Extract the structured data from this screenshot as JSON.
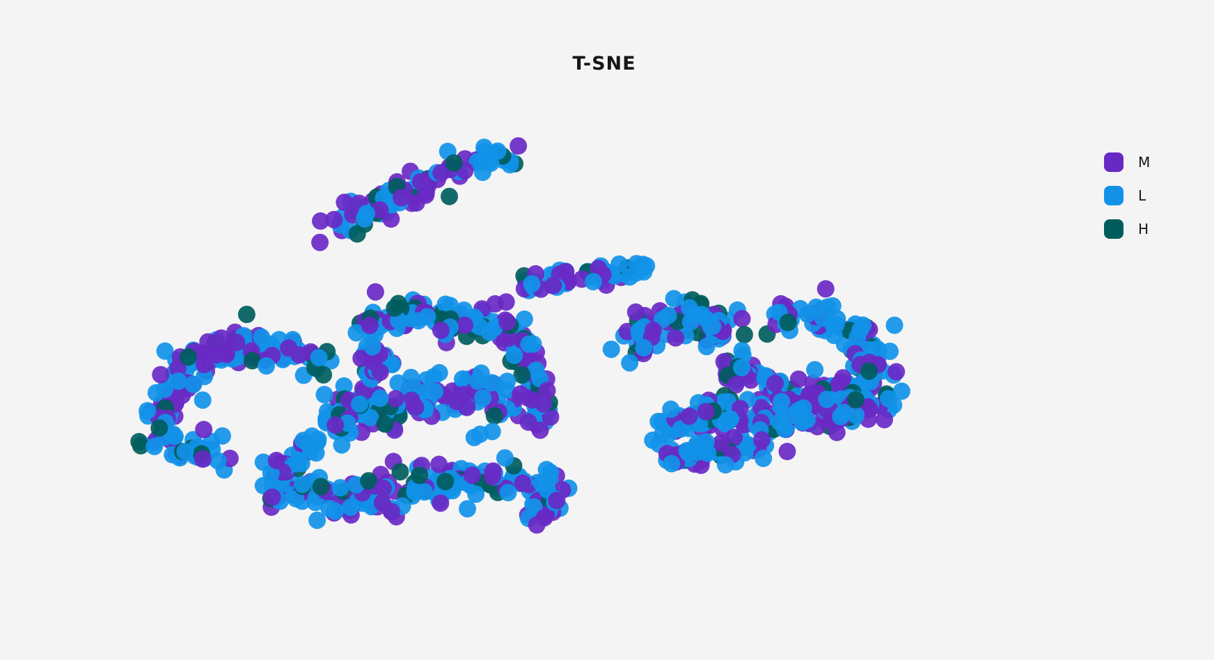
{
  "chart_data": {
    "type": "scatter",
    "title": "T-SNE",
    "xlabel": "",
    "ylabel": "",
    "grid": false,
    "axes_visible": false,
    "legend_position": "top-right",
    "series": [
      {
        "name": "M",
        "color": "#6929c4"
      },
      {
        "name": "L",
        "color": "#1192e8"
      },
      {
        "name": "H",
        "color": "#005d5d"
      }
    ],
    "clusters": [
      {
        "id": "top-band",
        "path": [
          [
            470,
            330
          ],
          [
            530,
            300
          ],
          [
            600,
            265
          ],
          [
            660,
            240
          ],
          [
            740,
            230
          ]
        ],
        "spread": 20,
        "n": 90
      },
      {
        "id": "upper-mid-band",
        "path": [
          [
            745,
            410
          ],
          [
            800,
            400
          ],
          [
            860,
            395
          ],
          [
            920,
            385
          ]
        ],
        "spread": 16,
        "n": 50
      },
      {
        "id": "left-arc",
        "path": [
          [
            460,
            520
          ],
          [
            400,
            500
          ],
          [
            330,
            500
          ],
          [
            270,
            525
          ],
          [
            235,
            575
          ],
          [
            230,
            630
          ],
          [
            270,
            650
          ],
          [
            330,
            655
          ]
        ],
        "spread": 24,
        "n": 170
      },
      {
        "id": "center-loop-top",
        "path": [
          [
            520,
            470
          ],
          [
            580,
            445
          ],
          [
            650,
            460
          ],
          [
            720,
            465
          ],
          [
            750,
            500
          ],
          [
            780,
            560
          ],
          [
            760,
            600
          ]
        ],
        "spread": 24,
        "n": 150
      },
      {
        "id": "center-body",
        "path": [
          [
            470,
            600
          ],
          [
            540,
            590
          ],
          [
            610,
            570
          ],
          [
            680,
            565
          ],
          [
            730,
            590
          ]
        ],
        "spread": 30,
        "n": 140
      },
      {
        "id": "center-bottom",
        "path": [
          [
            390,
            700
          ],
          [
            450,
            710
          ],
          [
            510,
            720
          ],
          [
            580,
            700
          ],
          [
            650,
            690
          ],
          [
            720,
            690
          ],
          [
            790,
            705
          ],
          [
            780,
            740
          ]
        ],
        "spread": 28,
        "n": 200
      },
      {
        "id": "center-stem",
        "path": [
          [
            400,
            670
          ],
          [
            440,
            650
          ],
          [
            480,
            625
          ],
          [
            500,
            585
          ]
        ],
        "spread": 16,
        "n": 40
      },
      {
        "id": "small-blob",
        "path": [
          [
            530,
            505
          ],
          [
            555,
            520
          ],
          [
            530,
            535
          ]
        ],
        "spread": 14,
        "n": 30
      },
      {
        "id": "right-upper",
        "path": [
          [
            900,
            495
          ],
          [
            960,
            470
          ],
          [
            1000,
            450
          ],
          [
            1030,
            470
          ],
          [
            1060,
            460
          ]
        ],
        "spread": 24,
        "n": 90
      },
      {
        "id": "right-ring",
        "path": [
          [
            1110,
            450
          ],
          [
            1170,
            455
          ],
          [
            1230,
            480
          ],
          [
            1260,
            520
          ],
          [
            1230,
            555
          ],
          [
            1170,
            565
          ],
          [
            1100,
            545
          ],
          [
            1060,
            525
          ],
          [
            1040,
            545
          ]
        ],
        "spread": 24,
        "n": 160
      },
      {
        "id": "right-lower",
        "path": [
          [
            960,
            610
          ],
          [
            1030,
            600
          ],
          [
            1100,
            600
          ],
          [
            1170,
            590
          ],
          [
            1230,
            585
          ],
          [
            1280,
            580
          ]
        ],
        "spread": 26,
        "n": 160
      },
      {
        "id": "right-tail",
        "path": [
          [
            960,
            660
          ],
          [
            1000,
            650
          ],
          [
            1050,
            645
          ],
          [
            1100,
            635
          ]
        ],
        "spread": 18,
        "n": 60
      }
    ]
  }
}
